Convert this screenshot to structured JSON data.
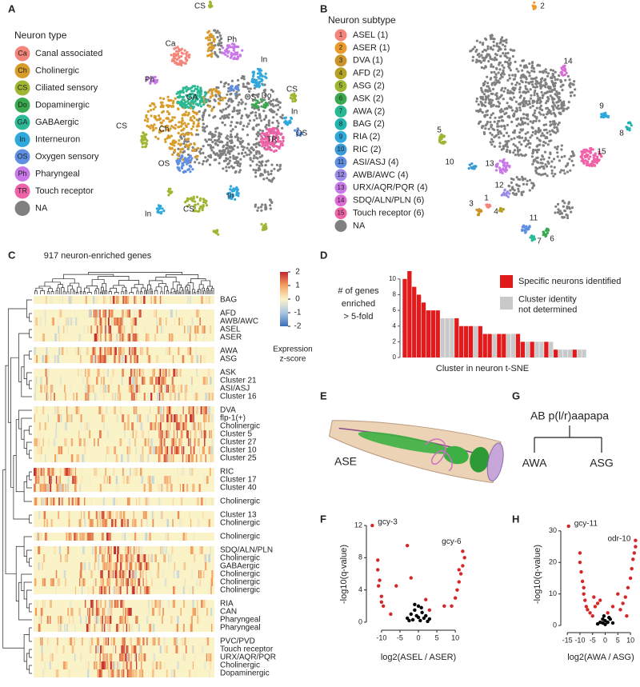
{
  "panels": {
    "A": {
      "letter": "A",
      "legend_title": "Neuron type",
      "legend": [
        {
          "abbr": "Ca",
          "label": "Canal associated",
          "color": "#f4857a"
        },
        {
          "abbr": "Ch",
          "label": "Cholinergic",
          "color": "#d89c2a"
        },
        {
          "abbr": "CS",
          "label": "Ciliated sensory",
          "color": "#a0b532"
        },
        {
          "abbr": "Do",
          "label": "Dopaminergic",
          "color": "#3aa84f"
        },
        {
          "abbr": "GA",
          "label": "GABAergic",
          "color": "#2bb894"
        },
        {
          "abbr": "In",
          "label": "Interneuron",
          "color": "#2fa8dc"
        },
        {
          "abbr": "OS",
          "label": "Oxygen sensory",
          "color": "#5f8fe3"
        },
        {
          "abbr": "Ph",
          "label": "Pharyngeal",
          "color": "#c878e8"
        },
        {
          "abbr": "TR",
          "label": "Touch receptor",
          "color": "#f062a8"
        },
        {
          "label": "NA",
          "color": "#808080"
        }
      ],
      "cluster_labels": [
        "CS",
        "Ca",
        "Ph",
        "Ph",
        "GA",
        "Ch",
        "In",
        "OS",
        "CS",
        "Do",
        "In",
        "OS",
        "CS",
        "OS",
        "TR",
        "In",
        "In",
        "CS"
      ]
    },
    "B": {
      "letter": "B",
      "legend_title": "Neuron subtype",
      "legend": [
        {
          "number": 1,
          "label": "ASEL (1)",
          "color": "#f4857a"
        },
        {
          "number": 2,
          "label": "ASER (1)",
          "color": "#ec9a2c"
        },
        {
          "number": 3,
          "label": "DVA (1)",
          "color": "#c9952a"
        },
        {
          "number": 4,
          "label": "AFD (2)",
          "color": "#b4a224"
        },
        {
          "number": 5,
          "label": "ASG (2)",
          "color": "#9db632"
        },
        {
          "number": 6,
          "label": "ASK (2)",
          "color": "#3aa84f"
        },
        {
          "number": 7,
          "label": "AWA (2)",
          "color": "#2bb894"
        },
        {
          "number": 8,
          "label": "BAG (2)",
          "color": "#22b2b0"
        },
        {
          "number": 9,
          "label": "RIA (2)",
          "color": "#2fa8dc"
        },
        {
          "number": 10,
          "label": "RIC (2)",
          "color": "#3a9bd6"
        },
        {
          "number": 11,
          "label": "ASI/ASJ (4)",
          "color": "#5f8fe3"
        },
        {
          "number": 12,
          "label": "AWB/AWC (4)",
          "color": "#9a8ce8"
        },
        {
          "number": 13,
          "label": "URX/AQR/PQR (4)",
          "color": "#c878e8"
        },
        {
          "number": 14,
          "label": "SDQ/ALN/PLN (6)",
          "color": "#dc6ad6"
        },
        {
          "number": 15,
          "label": "Touch receptor (6)",
          "color": "#f062a8"
        },
        {
          "label": "NA",
          "color": "#808080"
        }
      ],
      "cluster_labels": [
        2,
        14,
        9,
        8,
        5,
        15,
        13,
        10,
        12,
        1,
        3,
        4,
        11,
        6,
        7
      ]
    },
    "C": {
      "letter": "C",
      "title": "917 neuron-enriched genes",
      "colorbar": {
        "ticks": [
          2,
          1,
          0,
          -1,
          -2
        ],
        "label": [
          "Expression",
          "z-score"
        ]
      },
      "row_groups": [
        [
          "BAG"
        ],
        [
          "AFD",
          "AWB/AWC",
          "ASEL",
          "ASER"
        ],
        [
          "AWA",
          "ASG"
        ],
        [
          "ASK",
          "Cluster 21",
          "ASI/ASJ",
          "Cluster 16"
        ],
        [
          "DVA",
          "flp-1(+)",
          "Cholinergic",
          "Cluster 5",
          "Cluster 27",
          "Cluster 10",
          "Cluster 25"
        ],
        [
          "RIC",
          "Cluster 17",
          "Cluster 40"
        ],
        [
          "Cholinergic"
        ],
        [
          "Cluster 13",
          "Cholinergic"
        ],
        [
          "Cholinergic"
        ],
        [
          "SDQ/ALN/PLN",
          "Cholinergic",
          "GABAergic",
          "Cholinergic",
          "Cholinergic",
          "Cholinergic"
        ],
        [
          "RIA",
          "CAN",
          "Pharyngeal",
          "Pharyngeal"
        ],
        [
          "PVC/PVD",
          "Touch receptor",
          "URX/AQR/PQR",
          "Cholinergic",
          "Dopaminergic"
        ]
      ]
    },
    "D": {
      "letter": "D",
      "type": "bar",
      "y_label": [
        "# of genes",
        "enriched",
        "> 5-fold"
      ],
      "x_label": "Cluster in neuron t-SNE",
      "ylim": [
        0,
        11
      ],
      "yticks": [
        0,
        2,
        4,
        6,
        8,
        10
      ],
      "values": [
        10,
        11,
        9,
        8,
        7,
        6,
        6,
        6,
        5,
        5,
        5,
        5,
        4,
        4,
        4,
        4,
        4,
        3,
        3,
        3,
        3,
        3,
        3,
        3,
        3,
        2,
        2,
        2,
        2,
        2,
        2,
        2,
        1,
        1,
        1,
        1,
        1,
        1,
        1
      ],
      "bar_colors": [
        "#e31a1c",
        "#e31a1c",
        "#e31a1c",
        "#e31a1c",
        "#e31a1c",
        "#e31a1c",
        "#e31a1c",
        "#e31a1c",
        "#c9c9c9",
        "#c9c9c9",
        "#c9c9c9",
        "#e31a1c",
        "#e31a1c",
        "#e31a1c",
        "#e31a1c",
        "#c9c9c9",
        "#e31a1c",
        "#e31a1c",
        "#e31a1c",
        "#c9c9c9",
        "#e31a1c",
        "#e31a1c",
        "#c9c9c9",
        "#c9c9c9",
        "#e31a1c",
        "#e31a1c",
        "#c9c9c9",
        "#e31a1c",
        "#c9c9c9",
        "#c9c9c9",
        "#e31a1c",
        "#c9c9c9",
        "#e31a1c",
        "#c9c9c9",
        "#c9c9c9",
        "#c9c9c9",
        "#e31a1c",
        "#c9c9c9",
        "#c9c9c9"
      ],
      "legend": [
        {
          "label": [
            "Specific neurons identified"
          ],
          "color": "#e31a1c"
        },
        {
          "label": [
            "Cluster identity",
            "not determined"
          ],
          "color": "#c9c9c9"
        }
      ]
    },
    "E": {
      "letter": "E",
      "label": "ASE"
    },
    "F": {
      "letter": "F",
      "type": "scatter",
      "x_label": "log2(ASEL / ASER)",
      "y_label": "-log10(q-value)",
      "xlim": [
        -13,
        13
      ],
      "ylim": [
        -0.5,
        12.5
      ],
      "xticks": [
        -10,
        -5,
        0,
        5,
        10
      ],
      "yticks": [
        0,
        4,
        8,
        12
      ],
      "series": [
        {
          "color": "#d62728",
          "x": [
            -12.5,
            12,
            -11,
            -11,
            -10.5,
            -10.8,
            -10,
            -10,
            -9.5,
            -6,
            -2,
            -3,
            -7.5,
            7,
            9,
            10,
            10.5,
            11,
            11.5,
            12,
            12.5,
            11,
            3,
            2
          ],
          "y": [
            12,
            8.8,
            7.7,
            6.5,
            5.2,
            4.5,
            3.2,
            2.5,
            2,
            4.5,
            5.5,
            9.5,
            1,
            2,
            2,
            3,
            4,
            5,
            6,
            7,
            8,
            6.5,
            1.5,
            2.8
          ]
        },
        {
          "color": "#000000",
          "x": [
            -2,
            -1,
            0,
            1,
            2,
            -3,
            -1.5,
            0.5,
            1.5,
            3,
            -0.5,
            0,
            -2.5,
            2.5,
            0.8,
            -1
          ],
          "y": [
            1,
            1.5,
            2,
            1.2,
            0.8,
            0.5,
            0.3,
            0.2,
            0.5,
            0.4,
            0.8,
            0.6,
            0.2,
            0.1,
            1.8,
            2.2
          ]
        }
      ],
      "labels": [
        "gcy-3",
        "gcy-6"
      ]
    },
    "G": {
      "letter": "G",
      "root": "AB p(l/r)aapapa",
      "leaves": [
        "AWA",
        "ASG"
      ]
    },
    "H": {
      "letter": "H",
      "type": "scatter",
      "x_label": "log2(AWA / ASG)",
      "y_label": "-log10(q-value)",
      "xlim": [
        -16,
        12.5
      ],
      "ylim": [
        -1,
        33
      ],
      "xticks": [
        -15,
        -10,
        -5,
        0,
        5,
        10
      ],
      "yticks": [
        0,
        10,
        20,
        30
      ],
      "series": [
        {
          "color": "#d62728",
          "x": [
            -14.5,
            12,
            -10,
            -10,
            -9.5,
            -9,
            -8.5,
            -8.5,
            -8,
            -7.5,
            -7,
            -6,
            -4,
            -3,
            -2,
            -5,
            -4.5,
            1,
            3,
            5,
            6,
            7,
            8,
            9,
            10,
            10.5,
            11,
            11.5,
            12,
            8.5
          ],
          "y": [
            31.5,
            27,
            23,
            20,
            17,
            14,
            12,
            10,
            8,
            6,
            5,
            4,
            6,
            7,
            8,
            3,
            9,
            4,
            6,
            10,
            5,
            7,
            9,
            12,
            15,
            18,
            21,
            23,
            25,
            3
          ]
        },
        {
          "color": "#000000",
          "x": [
            -2,
            -1,
            0,
            1,
            2,
            -3,
            0,
            3,
            -1,
            1.5,
            -0.5
          ],
          "y": [
            1,
            2,
            1.5,
            1,
            2,
            0.5,
            0.3,
            0.8,
            0.8,
            2.5,
            3
          ]
        }
      ],
      "labels": [
        "gcy-11",
        "odr-10"
      ]
    }
  }
}
